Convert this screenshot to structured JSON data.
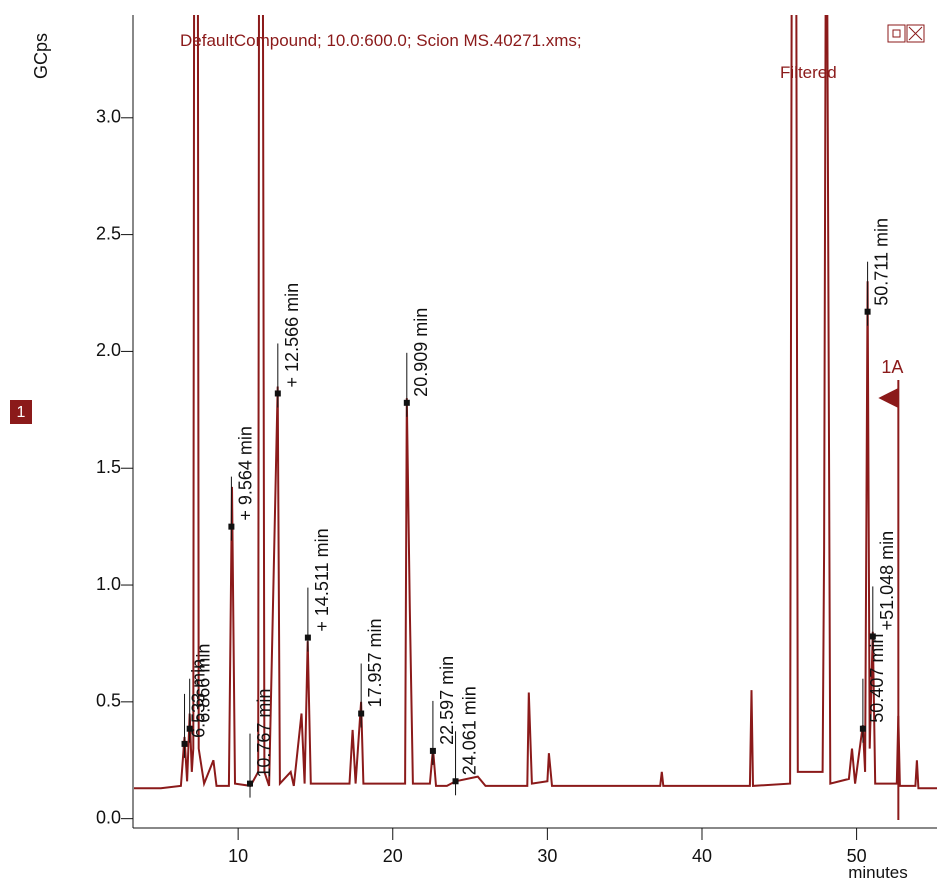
{
  "chart_data": {
    "type": "line",
    "title": "DefaultCompound;  10.0:600.0;  Scion MS.40271.xms;",
    "subtitle": "Filtered",
    "y_label": "GCps",
    "x_label": "minutes",
    "trace_number": "1",
    "xlim": [
      3.2,
      55.2
    ],
    "ylim": [
      -0.04,
      3.44
    ],
    "xticks": [
      10,
      20,
      30,
      40,
      50
    ],
    "yticks": [
      {
        "value": 0,
        "label": "0.0"
      },
      0.5,
      {
        "value": 1,
        "label": "1.0"
      },
      1.5,
      {
        "value": 2,
        "label": "2.0"
      },
      2.5,
      {
        "value": 3,
        "label": "3.0"
      }
    ],
    "x": [
      3.2,
      5.0,
      6.3,
      6.53,
      6.7,
      6.87,
      7.0,
      7.1,
      7.15,
      7.4,
      7.45,
      7.8,
      8.4,
      8.6,
      9.4,
      9.6,
      9.8,
      10.8,
      11.3,
      11.35,
      11.6,
      11.7,
      12.0,
      12.56,
      12.7,
      13.4,
      13.6,
      14.1,
      14.3,
      14.5,
      14.7,
      17.2,
      17.4,
      17.6,
      17.95,
      18.1,
      20.8,
      20.91,
      21.1,
      21.3,
      22.4,
      22.6,
      22.8,
      23.5,
      24.06,
      25.5,
      26.0,
      28.7,
      28.8,
      29.0,
      30.0,
      30.1,
      30.3,
      37.3,
      37.4,
      37.5,
      43.1,
      43.2,
      43.3,
      45.7,
      45.8,
      46.1,
      46.2,
      47.8,
      47.9,
      48.0,
      48.1,
      48.3,
      49.5,
      49.7,
      49.9,
      50.4,
      50.55,
      50.71,
      50.85,
      51.05,
      51.2,
      52.6,
      52.7,
      52.8,
      53.8,
      53.9,
      54.0,
      55.2
    ],
    "series": [
      {
        "name": "1",
        "color": "#8b1a1a",
        "values": [
          0.13,
          0.13,
          0.14,
          0.35,
          0.16,
          0.45,
          0.2,
          0.3,
          3.6,
          3.6,
          0.3,
          0.15,
          0.25,
          0.14,
          0.14,
          1.42,
          0.15,
          0.14,
          0.2,
          3.6,
          3.6,
          0.2,
          0.14,
          1.85,
          0.15,
          0.2,
          0.14,
          0.45,
          0.15,
          0.76,
          0.15,
          0.15,
          0.38,
          0.15,
          0.5,
          0.15,
          0.15,
          1.8,
          0.9,
          0.15,
          0.15,
          0.3,
          0.14,
          0.14,
          0.16,
          0.18,
          0.14,
          0.14,
          0.54,
          0.15,
          0.16,
          0.28,
          0.14,
          0.14,
          0.2,
          0.14,
          0.14,
          0.55,
          0.14,
          0.15,
          3.6,
          3.6,
          0.2,
          0.2,
          1.15,
          3.6,
          3.6,
          0.15,
          0.17,
          0.3,
          0.15,
          0.4,
          0.2,
          2.3,
          0.3,
          0.8,
          0.15,
          0.15,
          0.44,
          0.14,
          0.14,
          0.25,
          0.13,
          0.13
        ]
      }
    ],
    "annotations": [
      {
        "label": "6.533 min",
        "x": 6.533,
        "y": 0.32
      },
      {
        "label": "6.866 min",
        "x": 6.866,
        "y": 0.385
      },
      {
        "label": "+ 9.564 min",
        "x": 9.564,
        "y": 1.25
      },
      {
        "label": "10.767 min",
        "x": 10.767,
        "y": 0.15
      },
      {
        "label": "+ 12.566 min",
        "x": 12.566,
        "y": 1.82
      },
      {
        "label": "+ 14.511 min",
        "x": 14.511,
        "y": 0.775
      },
      {
        "label": "17.957 min",
        "x": 17.957,
        "y": 0.45
      },
      {
        "label": "20.909 min",
        "x": 20.909,
        "y": 1.78
      },
      {
        "label": "22.597 min",
        "x": 22.597,
        "y": 0.29
      },
      {
        "label": "24.061 min",
        "x": 24.061,
        "y": 0.16
      },
      {
        "label": "50.407 min",
        "x": 50.407,
        "y": 0.385
      },
      {
        "label": "50.711 min",
        "x": 50.711,
        "y": 2.17
      },
      {
        "label": "+51.048 min",
        "x": 51.048,
        "y": 0.78
      }
    ],
    "marker": {
      "label": "1A",
      "x": 52.7
    }
  }
}
